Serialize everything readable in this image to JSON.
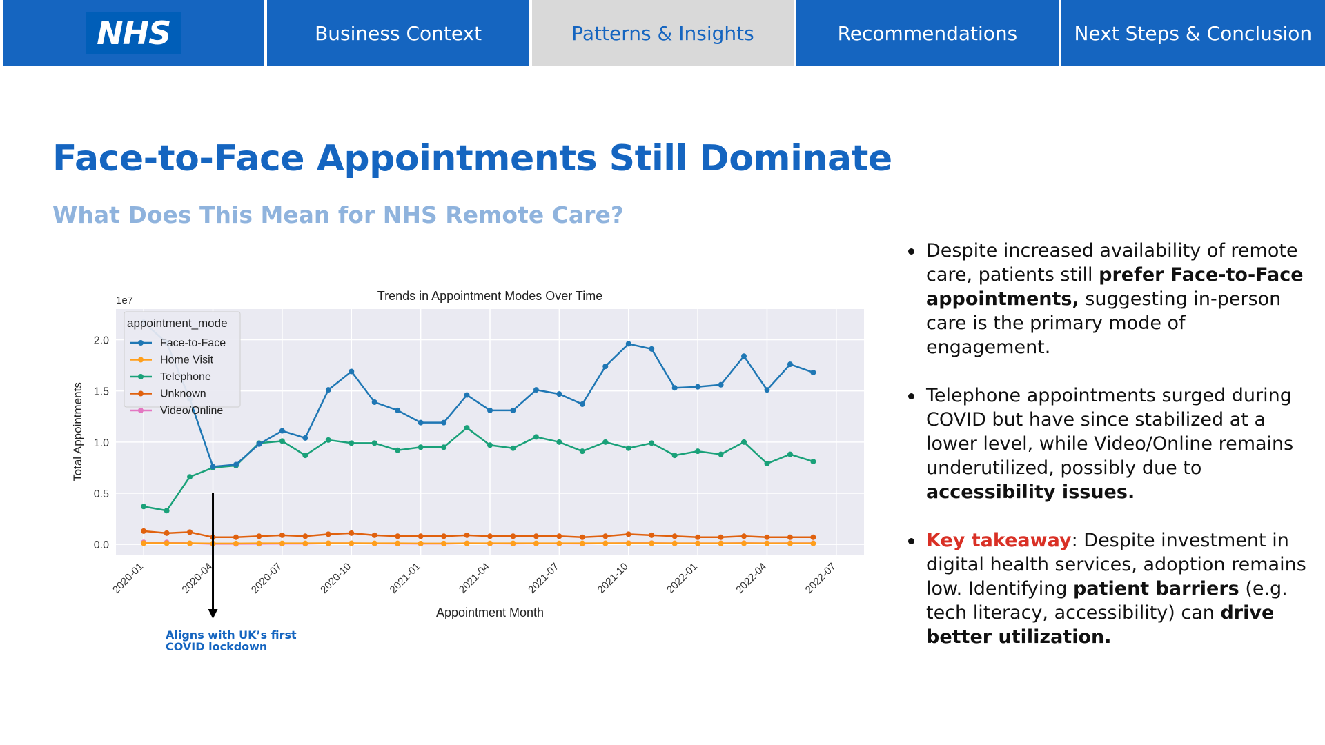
{
  "nav": {
    "logo_text": "NHS",
    "tabs": [
      {
        "label": "Business Context",
        "active": false
      },
      {
        "label": "Patterns & Insights",
        "active": true
      },
      {
        "label": "Recommendations",
        "active": false
      },
      {
        "label": "Next Steps & Conclusion",
        "active": false
      }
    ]
  },
  "colors": {
    "brand_blue": "#1565c0",
    "key_red": "#d93025",
    "subtitle_blue": "#8fb3dd"
  },
  "page": {
    "title": "Face-to-Face Appointments Still Dominate",
    "subtitle": "What Does This Mean for NHS Remote Care?"
  },
  "annotation": {
    "line1": "Aligns with UK’s first",
    "line2": "COVID lockdown",
    "month": "2020-04"
  },
  "insights": [
    {
      "parts": [
        {
          "t": "Despite increased availability of remote care, patients still ",
          "s": "normal"
        },
        {
          "t": "prefer Face-to-Face appointments,",
          "s": "bold"
        },
        {
          "t": " suggesting in-person care is the primary mode of engagement.",
          "s": "normal"
        }
      ]
    },
    {
      "parts": [
        {
          "t": "Telephone appointments surged during COVID but have since stabilized at a lower level, while Video/Online remains underutilized, possibly due to ",
          "s": "normal"
        },
        {
          "t": "accessibility issues.",
          "s": "bold"
        }
      ]
    },
    {
      "parts": [
        {
          "t": "Key takeaway",
          "s": "key"
        },
        {
          "t": ": Despite investment in digital health services, adoption remains low. Identifying ",
          "s": "normal"
        },
        {
          "t": "patient barriers",
          "s": "bold"
        },
        {
          "t": " (e.g. tech literacy, accessibility) can ",
          "s": "normal"
        },
        {
          "t": "drive better utilization.",
          "s": "bold"
        }
      ]
    }
  ],
  "chart_data": {
    "type": "line",
    "title": "Trends in Appointment Modes Over Time",
    "xlabel": "Appointment Month",
    "ylabel": "Total Appointments",
    "y_offset_label": "1e7",
    "ylim": [
      -0.1,
      2.3
    ],
    "yticks": [
      0.0,
      0.5,
      1.0,
      1.5,
      2.0
    ],
    "xticks": [
      "2020-01",
      "2020-04",
      "2020-07",
      "2020-10",
      "2021-01",
      "2021-04",
      "2021-07",
      "2021-10",
      "2022-01",
      "2022-04",
      "2022-07"
    ],
    "legend_title": "appointment_mode",
    "legend_position": "top-left",
    "grid": true,
    "x": [
      "2020-01",
      "2020-02",
      "2020-03",
      "2020-04",
      "2020-05",
      "2020-06",
      "2020-07",
      "2020-08",
      "2020-09",
      "2020-10",
      "2020-11",
      "2020-12",
      "2021-01",
      "2021-02",
      "2021-03",
      "2021-04",
      "2021-05",
      "2021-06",
      "2021-07",
      "2021-08",
      "2021-09",
      "2021-10",
      "2021-11",
      "2021-12",
      "2022-01",
      "2022-02",
      "2022-03",
      "2022-04",
      "2022-05",
      "2022-06"
    ],
    "series": [
      {
        "name": "Face-to-Face",
        "color": "#1f77b4",
        "values": [
          2.17,
          1.97,
          1.42,
          0.76,
          0.78,
          0.98,
          1.11,
          1.04,
          1.51,
          1.69,
          1.39,
          1.31,
          1.19,
          1.19,
          1.46,
          1.31,
          1.31,
          1.51,
          1.47,
          1.37,
          1.74,
          1.96,
          1.91,
          1.53,
          1.54,
          1.56,
          1.84,
          1.51,
          1.76,
          1.68
        ]
      },
      {
        "name": "Home Visit",
        "color": "#ff9f1c",
        "values": [
          0.012,
          0.012,
          0.011,
          0.009,
          0.009,
          0.01,
          0.01,
          0.01,
          0.011,
          0.011,
          0.01,
          0.01,
          0.009,
          0.009,
          0.01,
          0.01,
          0.01,
          0.01,
          0.01,
          0.01,
          0.011,
          0.011,
          0.011,
          0.01,
          0.01,
          0.01,
          0.011,
          0.01,
          0.01,
          0.01
        ]
      },
      {
        "name": "Telephone",
        "color": "#1aa179",
        "values": [
          0.37,
          0.33,
          0.66,
          0.75,
          0.77,
          0.99,
          1.01,
          0.87,
          1.02,
          0.99,
          0.99,
          0.92,
          0.95,
          0.95,
          1.14,
          0.97,
          0.94,
          1.05,
          1.0,
          0.91,
          1.0,
          0.94,
          0.99,
          0.87,
          0.91,
          0.88,
          1.0,
          0.79,
          0.88,
          0.81
        ]
      },
      {
        "name": "Unknown",
        "color": "#e0610e",
        "values": [
          0.13,
          0.11,
          0.12,
          0.07,
          0.07,
          0.08,
          0.09,
          0.08,
          0.1,
          0.11,
          0.09,
          0.08,
          0.08,
          0.08,
          0.09,
          0.08,
          0.08,
          0.08,
          0.08,
          0.07,
          0.08,
          0.1,
          0.09,
          0.08,
          0.07,
          0.07,
          0.08,
          0.07,
          0.07,
          0.07
        ]
      },
      {
        "name": "Video/Online",
        "color": "#e377c2",
        "values": [
          0.02,
          0.02,
          0.01,
          0.005,
          0.005,
          0.006,
          0.007,
          0.007,
          0.01,
          0.01,
          0.009,
          0.008,
          0.007,
          0.007,
          0.01,
          0.009,
          0.008,
          0.009,
          0.009,
          0.008,
          0.01,
          0.012,
          0.012,
          0.01,
          0.01,
          0.01,
          0.012,
          0.01,
          0.011,
          0.011
        ]
      }
    ]
  }
}
